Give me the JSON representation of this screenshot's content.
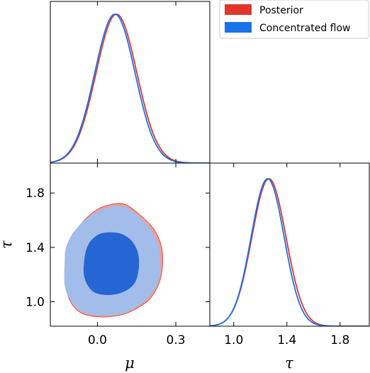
{
  "chart_data": {
    "type": "corner",
    "legend": {
      "placement": "top-right",
      "entries": [
        {
          "label": "Posterior",
          "color": "#e0352b"
        },
        {
          "label": "Concentrated flow",
          "color": "#1a72e8"
        }
      ]
    },
    "axes": {
      "mu": {
        "label": "μ",
        "range": [
          -0.18,
          0.43
        ],
        "ticks": [
          0.0,
          0.3
        ],
        "tick_labels": [
          "0.0",
          "0.3"
        ]
      },
      "tau": {
        "label": "τ",
        "range": [
          0.82,
          2.02
        ],
        "ticks": [
          1.0,
          1.4,
          1.8
        ],
        "tick_labels": [
          "1.0",
          "1.4",
          "1.8"
        ]
      }
    },
    "marginals": {
      "mu": {
        "series": [
          {
            "name": "Posterior",
            "color": "#e0352b",
            "mean": 0.073,
            "sd": 0.078
          },
          {
            "name": "Concentrated flow",
            "color": "#1a72e8",
            "mean": 0.067,
            "sd": 0.077
          }
        ]
      },
      "tau": {
        "series": [
          {
            "name": "Posterior",
            "color": "#e0352b",
            "mean": 1.265,
            "sd": 0.128
          },
          {
            "name": "Concentrated flow",
            "color": "#1a72e8",
            "mean": 1.255,
            "sd": 0.124
          }
        ]
      }
    },
    "joint": {
      "x": "mu",
      "y": "tau",
      "contours": [
        {
          "name": "Posterior",
          "level": "95%",
          "color": "#e9a0a0",
          "points": [
            [
              -0.12,
              1.29
            ],
            [
              -0.115,
              1.4
            ],
            [
              -0.09,
              1.5
            ],
            [
              -0.05,
              1.6
            ],
            [
              0.0,
              1.68
            ],
            [
              0.05,
              1.715
            ],
            [
              0.1,
              1.72
            ],
            [
              0.15,
              1.66
            ],
            [
              0.21,
              1.55
            ],
            [
              0.24,
              1.44
            ],
            [
              0.25,
              1.32
            ],
            [
              0.24,
              1.16
            ],
            [
              0.2,
              1.02
            ],
            [
              0.13,
              0.93
            ],
            [
              0.07,
              0.895
            ],
            [
              0.0,
              0.89
            ],
            [
              -0.06,
              0.915
            ],
            [
              -0.1,
              0.99
            ],
            [
              -0.12,
              1.11
            ]
          ]
        },
        {
          "name": "Posterior",
          "level": "68%",
          "color": "#c47ba8",
          "points": [
            [
              -0.045,
              1.3
            ],
            [
              -0.03,
              1.41
            ],
            [
              0.0,
              1.5
            ],
            [
              0.05,
              1.54
            ],
            [
              0.1,
              1.525
            ],
            [
              0.14,
              1.46
            ],
            [
              0.165,
              1.36
            ],
            [
              0.168,
              1.24
            ],
            [
              0.15,
              1.13
            ],
            [
              0.1,
              1.06
            ],
            [
              0.04,
              1.045
            ],
            [
              -0.02,
              1.08
            ],
            [
              -0.045,
              1.18
            ]
          ]
        },
        {
          "name": "Concentrated flow",
          "level": "95%",
          "color": "#a3bdeb",
          "points": [
            [
              -0.125,
              1.3
            ],
            [
              -0.12,
              1.4
            ],
            [
              -0.095,
              1.5
            ],
            [
              -0.055,
              1.59
            ],
            [
              0.0,
              1.665
            ],
            [
              0.05,
              1.7
            ],
            [
              0.1,
              1.7
            ],
            [
              0.15,
              1.64
            ],
            [
              0.2,
              1.54
            ],
            [
              0.23,
              1.43
            ],
            [
              0.24,
              1.31
            ],
            [
              0.235,
              1.16
            ],
            [
              0.19,
              1.02
            ],
            [
              0.12,
              0.93
            ],
            [
              0.06,
              0.9
            ],
            [
              0.0,
              0.9
            ],
            [
              -0.06,
              0.925
            ],
            [
              -0.1,
              1.0
            ],
            [
              -0.125,
              1.12
            ]
          ]
        },
        {
          "name": "Concentrated flow",
          "level": "68%",
          "color": "#2666d4",
          "points": [
            [
              -0.05,
              1.31
            ],
            [
              -0.035,
              1.42
            ],
            [
              0.0,
              1.49
            ],
            [
              0.04,
              1.51
            ],
            [
              0.09,
              1.5
            ],
            [
              0.13,
              1.45
            ],
            [
              0.155,
              1.36
            ],
            [
              0.158,
              1.24
            ],
            [
              0.14,
              1.13
            ],
            [
              0.09,
              1.065
            ],
            [
              0.03,
              1.05
            ],
            [
              -0.02,
              1.08
            ],
            [
              -0.05,
              1.18
            ]
          ]
        }
      ]
    }
  }
}
